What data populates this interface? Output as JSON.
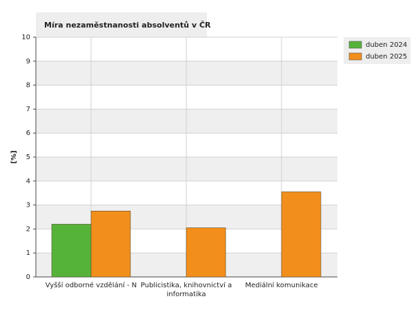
{
  "chart_data": {
    "type": "bar",
    "title": "Míra nezaměstnanosti absolventů v ČR",
    "y_label": "[%]",
    "categories": [
      "Vyšší odborné vzdělání - N",
      "Publicistika, knihovnictví a informatika",
      "Mediální komunikace"
    ],
    "series": [
      {
        "name": "duben 2024",
        "color": "#56b33a",
        "values": [
          2.2,
          null,
          null
        ]
      },
      {
        "name": "duben 2025",
        "color": "#f28e1c",
        "values": [
          2.75,
          2.05,
          3.55
        ]
      }
    ],
    "ylim": [
      0,
      10
    ],
    "yticks": [
      0,
      1,
      2,
      3,
      4,
      5,
      6,
      7,
      8,
      9,
      10
    ],
    "grid": true,
    "legend": "top-right"
  }
}
